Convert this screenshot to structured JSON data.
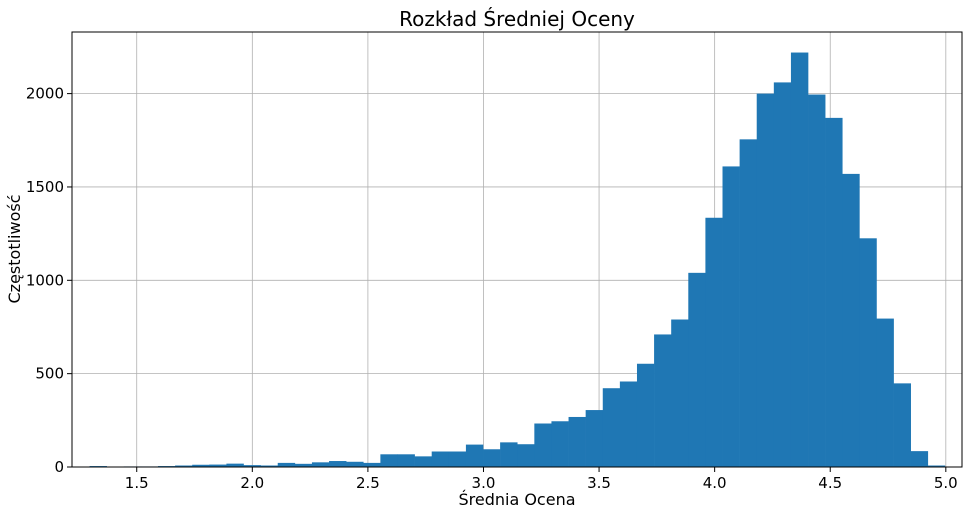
{
  "chart_data": {
    "type": "bar",
    "title": "Rozkład Średniej Oceny",
    "xlabel": "Średnia Ocena",
    "ylabel": "Częstotliwość",
    "xlim": [
      1.22,
      5.07
    ],
    "ylim": [
      0,
      2330
    ],
    "grid": true,
    "bar_color": "#1f77b4",
    "bin_width": 0.074,
    "x_ticks": [
      "1.5",
      "2.0",
      "2.5",
      "3.0",
      "3.5",
      "4.0",
      "4.5",
      "5.0"
    ],
    "x_tick_values": [
      1.5,
      2.0,
      2.5,
      3.0,
      3.5,
      4.0,
      4.5,
      5.0
    ],
    "y_ticks": [
      "0",
      "500",
      "1000",
      "1500",
      "2000"
    ],
    "y_tick_values": [
      0,
      500,
      1000,
      1500,
      2000
    ],
    "bin_starts": [
      1.296,
      1.37,
      1.444,
      1.518,
      1.592,
      1.666,
      1.74,
      1.814,
      1.888,
      1.962,
      2.036,
      2.11,
      2.184,
      2.258,
      2.332,
      2.406,
      2.48,
      2.554,
      2.628,
      2.702,
      2.776,
      2.85,
      2.924,
      2.998,
      3.072,
      3.146,
      3.22,
      3.294,
      3.368,
      3.442,
      3.516,
      3.59,
      3.664,
      3.738,
      3.812,
      3.886,
      3.96,
      4.034,
      4.108,
      4.182,
      4.256,
      4.33,
      4.404,
      4.478,
      4.552,
      4.626,
      4.7,
      4.774,
      4.848,
      4.922
    ],
    "values": [
      5,
      0,
      3,
      3,
      5,
      8,
      12,
      13,
      18,
      10,
      8,
      22,
      17,
      25,
      32,
      28,
      22,
      68,
      68,
      57,
      83,
      83,
      120,
      95,
      132,
      122,
      233,
      245,
      268,
      305,
      422,
      458,
      553,
      710,
      790,
      1040,
      1335,
      1610,
      1755,
      2000,
      2060,
      2220,
      1995,
      1870,
      1570,
      1225,
      795,
      448,
      85,
      8
    ]
  }
}
